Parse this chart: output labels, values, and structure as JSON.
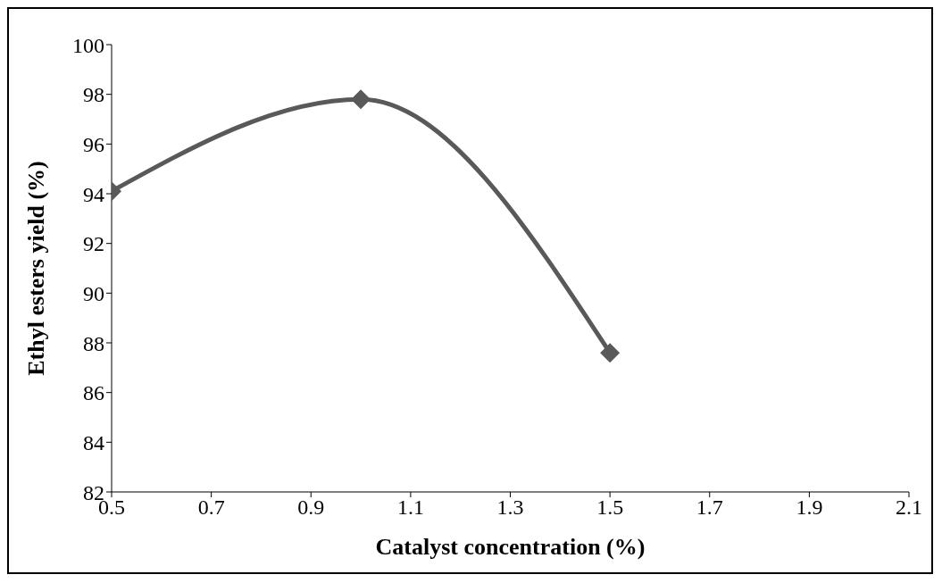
{
  "chart_data": {
    "type": "line",
    "xlabel": "Catalyst concentration (%)",
    "ylabel": "Ethyl esters yield (%)",
    "x": [
      0.5,
      1.0,
      1.5
    ],
    "series": [
      {
        "color": "#595959",
        "values": [
          94.1,
          97.8,
          87.6
        ]
      }
    ],
    "xlim": [
      0.5,
      2.1
    ],
    "xticks": [
      0.5,
      0.7,
      0.9,
      1.1,
      1.3,
      1.5,
      1.7,
      1.9,
      2.1
    ],
    "ylim": [
      82,
      100
    ],
    "yticks": [
      82,
      84,
      86,
      88,
      90,
      92,
      94,
      96,
      98,
      100
    ],
    "grid": false,
    "legend": false,
    "marker": "diamond",
    "line_style": "solid"
  }
}
